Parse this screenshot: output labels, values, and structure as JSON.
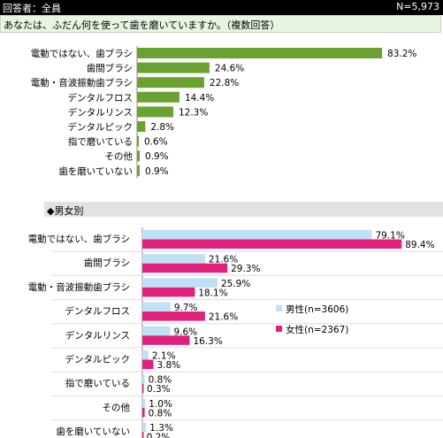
{
  "header": {
    "respondents": "回答者：全員",
    "n_total": "N=5,973"
  },
  "question": "あなたは、ふだん何を使って歯を磨いていますか。（複数回答）",
  "section_label": "◆男女別",
  "colors": {
    "total": "#6aa232",
    "male": "#bfe0f5",
    "female": "#e0207a"
  },
  "chart_data": [
    {
      "type": "bar",
      "orientation": "horizontal",
      "categories": [
        "電動ではない、歯ブラシ",
        "歯間ブラシ",
        "電動・音波振動歯ブラシ",
        "デンタルフロス",
        "デンタルリンス",
        "デンタルピック",
        "指で磨いている",
        "その他",
        "歯を磨いていない"
      ],
      "values": [
        83.2,
        24.6,
        22.8,
        14.4,
        12.3,
        2.8,
        0.6,
        0.9,
        0.9
      ],
      "labels": [
        "83.2%",
        "24.6%",
        "22.8%",
        "14.4%",
        "12.3%",
        "2.8%",
        "0.6%",
        "0.9%",
        "0.9%"
      ],
      "xlim": [
        0,
        100
      ]
    },
    {
      "type": "bar",
      "orientation": "horizontal",
      "categories": [
        "電動ではない、歯ブラシ",
        "歯間ブラシ",
        "電動・音波振動歯ブラシ",
        "デンタルフロス",
        "デンタルリンス",
        "デンタルピック",
        "指で磨いている",
        "その他",
        "歯を磨いていない"
      ],
      "series": [
        {
          "name": "男性(n=3606)",
          "values": [
            79.1,
            21.6,
            25.9,
            9.7,
            9.6,
            2.1,
            0.8,
            1.0,
            1.3
          ],
          "labels": [
            "79.1%",
            "21.6%",
            "25.9%",
            "9.7%",
            "9.6%",
            "2.1%",
            "0.8%",
            "1.0%",
            "1.3%"
          ]
        },
        {
          "name": "女性(n=2367)",
          "values": [
            89.4,
            29.3,
            18.1,
            21.6,
            16.3,
            3.8,
            0.3,
            0.8,
            0.2
          ],
          "labels": [
            "89.4%",
            "29.3%",
            "18.1%",
            "21.6%",
            "16.3%",
            "3.8%",
            "0.3%",
            "0.8%",
            "0.2%"
          ]
        }
      ],
      "legend": "right",
      "xlim": [
        0,
        100
      ]
    }
  ]
}
